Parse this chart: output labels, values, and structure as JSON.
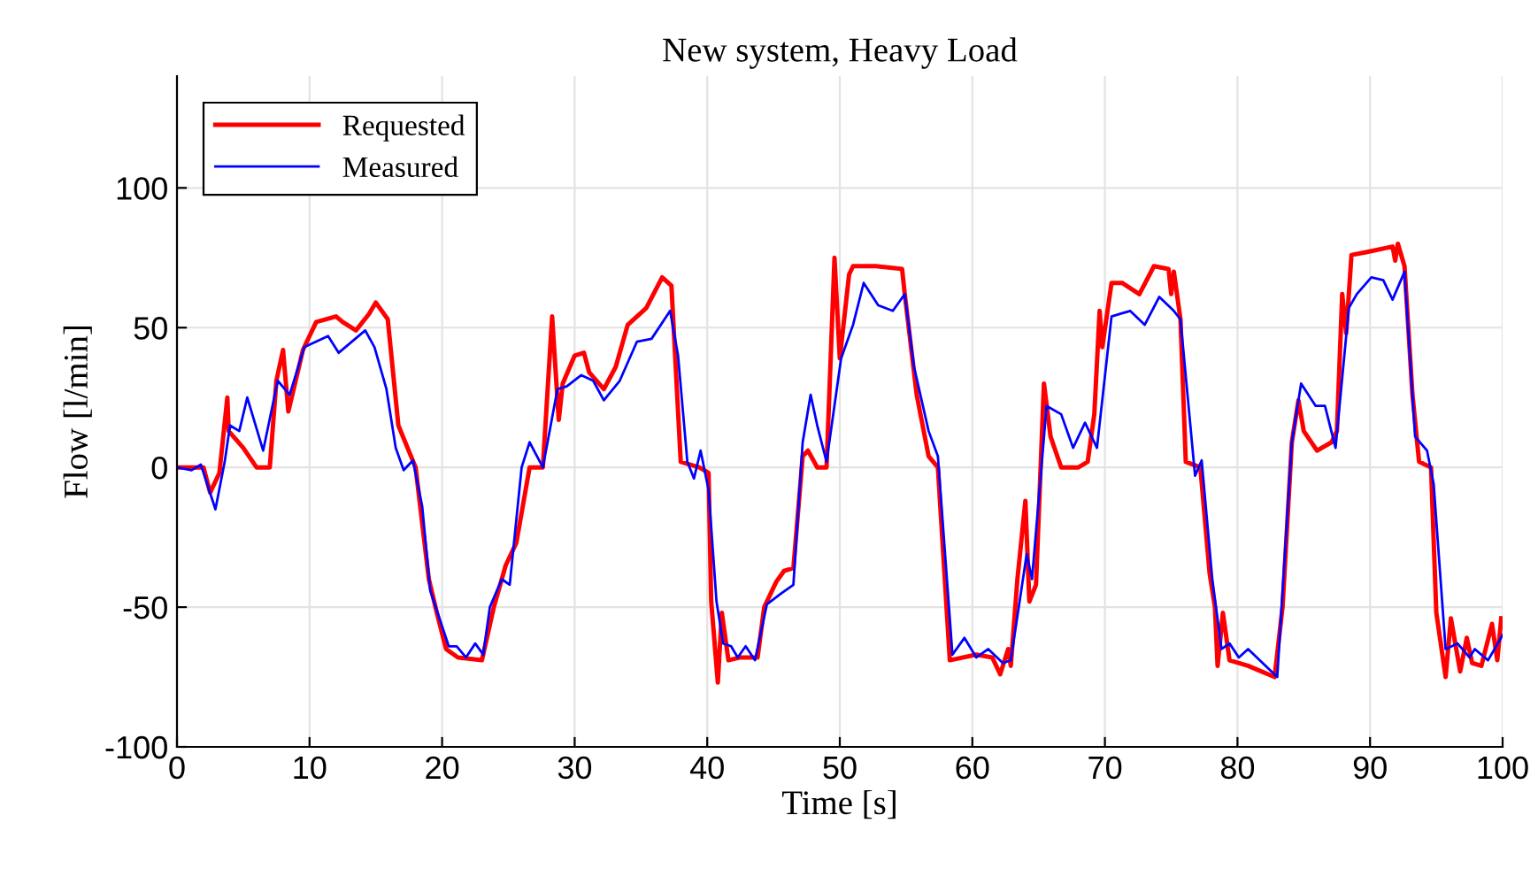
{
  "chart_data": {
    "type": "line",
    "title": "New system, Heavy Load",
    "xlabel": "Time [s]",
    "ylabel": "Flow [l/min]",
    "xlim": [
      0,
      100
    ],
    "xticks": [
      0,
      10,
      20,
      30,
      40,
      50,
      60,
      70,
      80,
      90,
      100
    ],
    "ylim": [
      -100,
      140
    ],
    "yticks": [
      -100,
      -50,
      0,
      50,
      100
    ],
    "grid": true,
    "legend": "top left",
    "line_style": "solid",
    "marker": "none",
    "series": [
      {
        "name": "Requested",
        "color": "#ff0000",
        "x": [
          0,
          1,
          2,
          2.5,
          3.2,
          3.8,
          3.9,
          5,
          6,
          7,
          7.5,
          8,
          8.4,
          8.7,
          9.5,
          10.5,
          12,
          12.5,
          13.5,
          14.5,
          15,
          15.9,
          16.3,
          16.7,
          18,
          19,
          19.6,
          20.3,
          21.2,
          23,
          23.9,
          24.8,
          25.6,
          26.6,
          27.6,
          28.3,
          28.8,
          29.1,
          30,
          30.7,
          31.1,
          32.2,
          33.1,
          34,
          35.4,
          36.6,
          37.3,
          38,
          39.4,
          40.1,
          40.3,
          40.8,
          41.1,
          41.6,
          42.5,
          43.8,
          44.3,
          45.2,
          45.8,
          46.5,
          47.2,
          47.6,
          48.3,
          49,
          49.6,
          50,
          50.7,
          51.0,
          52.7,
          54.7,
          54.9,
          55.8,
          56.7,
          57.4,
          58.3,
          60.3,
          61.5,
          62.1,
          62.7,
          62.9,
          63.4,
          64,
          64.3,
          64.8,
          65.4,
          65.9,
          66.7,
          68,
          68.7,
          69.2,
          69.6,
          69.8,
          70.5,
          71.3,
          72.6,
          73.7,
          74.8,
          75.0,
          75.2,
          75.7,
          76.1,
          77.2,
          77.9,
          78.3,
          78.5,
          78.9,
          79.4,
          80.8,
          82.8,
          83.4,
          84.1,
          84.6,
          85.0,
          86,
          87.1,
          87.5,
          87.9,
          88.2,
          88.6,
          89.7,
          91.7,
          91.9,
          92.1,
          92.6,
          93.2,
          93.7,
          94.6,
          95.0,
          95.7,
          96.1,
          96.8,
          97.3,
          97.7,
          98.4,
          99.2,
          99.6,
          99.9
        ],
        "values": [
          0,
          0,
          0,
          -9,
          -2,
          25,
          13,
          7,
          0,
          0,
          31,
          42,
          20,
          26,
          42,
          52,
          54,
          52,
          49,
          55,
          59,
          53,
          34,
          15,
          0,
          -40,
          -52,
          -65,
          -68,
          -69,
          -50,
          -35,
          -27,
          0,
          0,
          54,
          17,
          30,
          40,
          41,
          34,
          28,
          36,
          51,
          57,
          68,
          65,
          2,
          0,
          -2,
          -48,
          -77,
          -52,
          -69,
          -68,
          -68,
          -50,
          -41,
          -37,
          -36,
          4,
          6,
          0,
          0,
          75,
          39,
          69,
          72,
          72,
          71,
          62,
          26,
          4,
          0,
          -69,
          -67,
          -68,
          -74,
          -65,
          -71,
          -40,
          -12,
          -48,
          -42,
          30,
          11,
          0,
          0,
          2,
          19,
          56,
          43,
          66,
          66,
          62,
          72,
          71,
          62,
          70,
          53,
          2,
          0,
          -38,
          -50,
          -71,
          -52,
          -69,
          -71,
          -75,
          -50,
          9,
          24,
          13,
          6,
          9,
          13,
          62,
          48,
          76,
          77,
          79,
          74,
          80,
          72,
          26,
          2,
          0,
          -52,
          -75,
          -54,
          -73,
          -61,
          -70,
          -71,
          -56,
          -69,
          -54
        ]
      },
      {
        "name": "Measured",
        "color": "#0000ff",
        "x": [
          0,
          1.1,
          1.8,
          2.9,
          3.6,
          4.0,
          4.7,
          5.3,
          6.5,
          7.6,
          8.5,
          9.6,
          11.4,
          12.2,
          14.2,
          14.9,
          15.8,
          16.5,
          17.1,
          17.8,
          18.5,
          19.1,
          20.5,
          21.1,
          21.8,
          22.5,
          23.1,
          23.6,
          24.5,
          25.1,
          26.0,
          26.6,
          27.6,
          28.7,
          29.4,
          30.5,
          31.4,
          32.2,
          33.4,
          34.7,
          35.8,
          37.2,
          37.8,
          38.5,
          39,
          39.5,
          40.1,
          40.7,
          41.2,
          41.8,
          42.3,
          42.9,
          43.6,
          44.5,
          45.6,
          46.5,
          47.2,
          47.8,
          48.3,
          49,
          50.1,
          51.0,
          51.8,
          52.9,
          54,
          54.9,
          55.6,
          56.7,
          57.4,
          58.5,
          59.4,
          60.3,
          61.2,
          62.3,
          62.9,
          64.1,
          64.5,
          65.6,
          66.7,
          67.6,
          68.5,
          69.4,
          70.5,
          71.9,
          73,
          74.1,
          75.2,
          75.7,
          76.8,
          77.3,
          78.1,
          78.8,
          79.4,
          80.1,
          80.8,
          81.9,
          83.0,
          84.1,
          84.8,
          85.9,
          86.6,
          87.4,
          88.4,
          89.0,
          90.1,
          91.0,
          91.7,
          92.6,
          93.4,
          94.3,
          94.8,
          95.7,
          96.6,
          97.5,
          97.9,
          98.9,
          100
        ],
        "values": [
          0,
          -1,
          1,
          -15,
          2,
          15,
          13,
          25,
          6,
          31,
          26,
          43,
          47,
          41,
          49,
          43,
          28,
          7,
          -1,
          2.5,
          -14,
          -44,
          -64,
          -64,
          -68,
          -63,
          -67,
          -50,
          -40,
          -42,
          0,
          9,
          0,
          28,
          29,
          33,
          31,
          24,
          31,
          45,
          46,
          56,
          40,
          2,
          -4,
          6,
          -8,
          -48,
          -63,
          -64,
          -68,
          -64,
          -69,
          -49,
          -45,
          -42,
          9,
          26,
          15,
          2,
          39,
          51,
          66,
          58,
          56,
          62,
          36,
          13,
          4,
          -67,
          -61,
          -68,
          -65,
          -70,
          -69,
          -31,
          -40,
          22,
          19,
          7,
          16,
          7,
          54,
          56,
          51,
          61,
          56,
          53,
          -3,
          2.5,
          -40,
          -65,
          -63,
          -68,
          -65,
          -70,
          -75,
          9,
          30,
          22,
          22,
          7,
          57,
          62,
          68,
          67,
          60,
          70,
          11,
          6,
          -6,
          -65,
          -63,
          -68,
          -65,
          -69,
          -60
        ]
      }
    ]
  }
}
